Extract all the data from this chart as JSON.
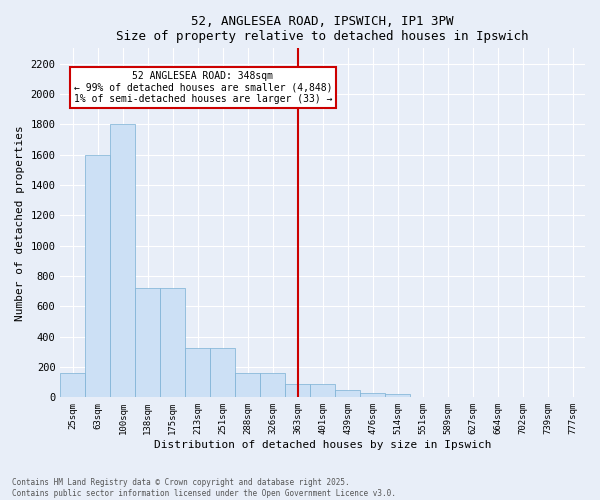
{
  "title": "52, ANGLESEA ROAD, IPSWICH, IP1 3PW",
  "subtitle": "Size of property relative to detached houses in Ipswich",
  "xlabel": "Distribution of detached houses by size in Ipswich",
  "ylabel": "Number of detached properties",
  "categories": [
    "25sqm",
    "63sqm",
    "100sqm",
    "138sqm",
    "175sqm",
    "213sqm",
    "251sqm",
    "288sqm",
    "326sqm",
    "363sqm",
    "401sqm",
    "439sqm",
    "476sqm",
    "514sqm",
    "551sqm",
    "589sqm",
    "627sqm",
    "664sqm",
    "702sqm",
    "739sqm",
    "777sqm"
  ],
  "values": [
    160,
    1600,
    1800,
    720,
    720,
    325,
    325,
    160,
    160,
    85,
    85,
    50,
    30,
    25,
    5,
    0,
    0,
    0,
    0,
    0,
    0
  ],
  "bar_color": "#cce0f5",
  "bar_edge_color": "#7ab0d4",
  "annotation_text_line1": "52 ANGLESEA ROAD: 348sqm",
  "annotation_text_line2": "← 99% of detached houses are smaller (4,848)",
  "annotation_text_line3": "1% of semi-detached houses are larger (33) →",
  "vline_color": "#cc0000",
  "vline_x_index": 9.0,
  "bg_color": "#e8eef8",
  "grid_color": "#ffffff",
  "footer_line1": "Contains HM Land Registry data © Crown copyright and database right 2025.",
  "footer_line2": "Contains public sector information licensed under the Open Government Licence v3.0.",
  "ylim": [
    0,
    2300
  ],
  "yticks": [
    0,
    200,
    400,
    600,
    800,
    1000,
    1200,
    1400,
    1600,
    1800,
    2000,
    2200
  ]
}
